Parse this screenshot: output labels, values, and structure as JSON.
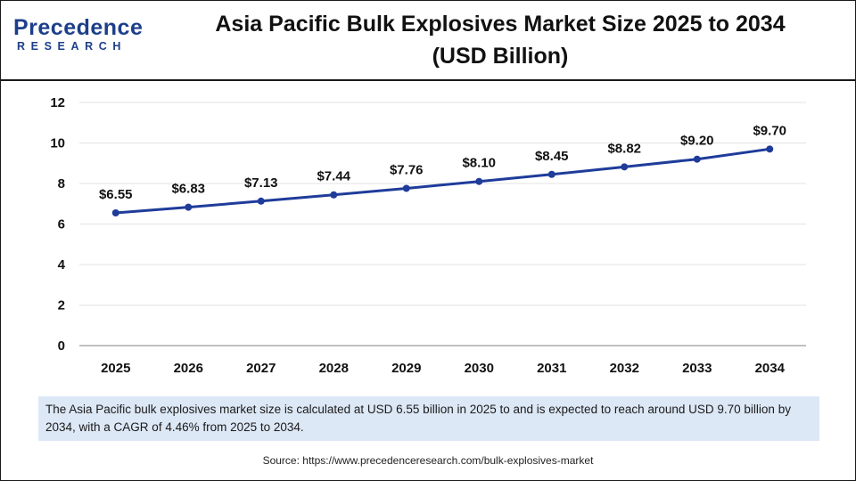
{
  "brand": {
    "name": "Precedence",
    "sub": "RESEARCH",
    "color": "#1d3f8a"
  },
  "header": {
    "title_line1": "Asia Pacific Bulk Explosives Market Size 2025 to 2034",
    "title_line2": "(USD Billion)"
  },
  "chart_data": {
    "type": "line",
    "title": "Asia Pacific Bulk Explosives Market Size 2025 to 2034 (USD Billion)",
    "categories": [
      "2025",
      "2026",
      "2027",
      "2028",
      "2029",
      "2030",
      "2031",
      "2032",
      "2033",
      "2034"
    ],
    "series": [
      {
        "values": [
          6.55,
          6.83,
          7.13,
          7.44,
          7.76,
          8.1,
          8.45,
          8.82,
          9.2,
          9.7
        ],
        "labels": [
          "$6.55",
          "$6.83",
          "$7.13",
          "$7.44",
          "$7.76",
          "$8.10",
          "$8.45",
          "$8.82",
          "$9.20",
          "$9.70"
        ],
        "color": "#1f3c9a"
      }
    ],
    "ylim": [
      0,
      12
    ],
    "yticks": [
      "0",
      "2",
      "4",
      "6",
      "8",
      "10",
      "12"
    ],
    "xlabel": "",
    "ylabel": "",
    "grid": true,
    "legend": "none"
  },
  "note": {
    "text": "The Asia Pacific bulk explosives market size is calculated at USD 6.55 billion in 2025 to and is expected to reach around USD 9.70 billion by 2034, with a CAGR of 4.46% from 2025 to 2034."
  },
  "source": {
    "text": "Source: https://www.precedenceresearch.com/bulk-explosives-market"
  }
}
